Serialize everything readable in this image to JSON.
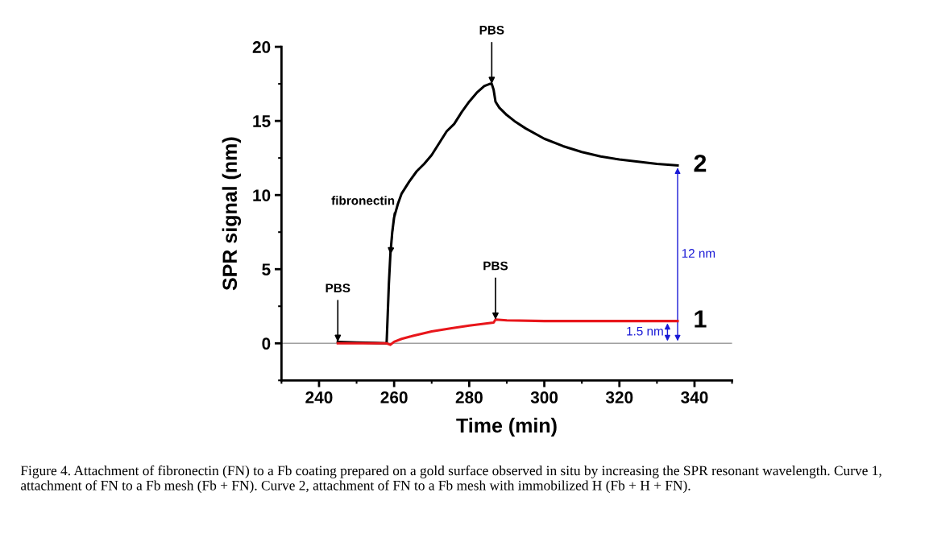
{
  "chart_data": {
    "type": "line",
    "xlabel": "Time (min)",
    "ylabel": "SPR signal (nm)",
    "xlim": [
      230,
      350
    ],
    "xticks": [
      240,
      260,
      280,
      300,
      320,
      340
    ],
    "ylim": [
      -2.5,
      20
    ],
    "yticks": [
      0,
      5,
      10,
      15,
      20
    ],
    "grid": false,
    "legend": false,
    "marker": "none",
    "line_style": "solid",
    "ref_lines": [
      {
        "axis": "y",
        "value": 0,
        "color": "#a0a0a0"
      }
    ],
    "series": [
      {
        "name": "2",
        "color": "#000000",
        "x": [
          245,
          250,
          255,
          258,
          258.3,
          258.6,
          259,
          259.5,
          260,
          261,
          262,
          264,
          266,
          268,
          270,
          272,
          274,
          276,
          278,
          280,
          282,
          284,
          285.5,
          286,
          286.5,
          287,
          288,
          290,
          292,
          295,
          300,
          305,
          310,
          315,
          320,
          325,
          330,
          335.5
        ],
        "values": [
          0.1,
          0.05,
          0.02,
          0.0,
          2,
          4,
          6,
          7.5,
          8.5,
          9.4,
          10.1,
          10.9,
          11.6,
          12.1,
          12.7,
          13.5,
          14.3,
          14.8,
          15.6,
          16.3,
          16.9,
          17.35,
          17.5,
          17.5,
          17.1,
          16.3,
          15.9,
          15.4,
          15.0,
          14.5,
          13.8,
          13.3,
          12.9,
          12.6,
          12.4,
          12.25,
          12.1,
          12.0
        ]
      },
      {
        "name": "1",
        "color": "#e8161b",
        "x": [
          245,
          250,
          255,
          258,
          259,
          260,
          262,
          265,
          270,
          275,
          280,
          286.5,
          287,
          290,
          300,
          310,
          320,
          335.5
        ],
        "values": [
          0.0,
          0.0,
          0.0,
          0.0,
          -0.1,
          0.1,
          0.3,
          0.5,
          0.8,
          1.0,
          1.2,
          1.4,
          1.6,
          1.55,
          1.5,
          1.5,
          1.5,
          1.5
        ]
      }
    ],
    "annotations": [
      {
        "text": "PBS",
        "x": 245,
        "y": 0.1
      },
      {
        "text": "fibronectin",
        "x": 259,
        "y": 6
      },
      {
        "text": "PBS",
        "x": 286,
        "y": 17.5
      },
      {
        "text": "PBS",
        "x": 287,
        "y": 1.6
      },
      "12 nm",
      "1.5 nm",
      "Figure 4. Attachment of fibronectin (FN) to a Fb coating prepared on a gold surface observed in situ by increasing the SPR resonant wavelength. Curve 1, attachment of FN to a Fb mesh (Fb + FN). Curve 2, attachment of FN to a Fb mesh with immobilized H (Fb + H + FN)."
    ]
  }
}
